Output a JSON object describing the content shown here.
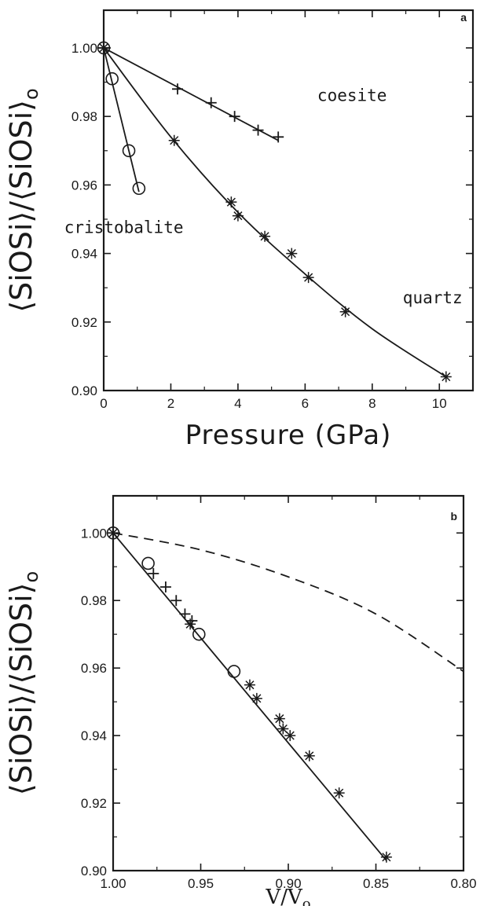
{
  "chart_data": [
    {
      "type": "line",
      "panel_label": "a",
      "xlabel": "Pressure (GPa)",
      "ylabel": "⟨SiOSi⟩/⟨SiOSi⟩",
      "ylabel_sub": "o",
      "xlim": [
        0,
        11
      ],
      "ylim": [
        0.9,
        1.011
      ],
      "x_ticks": [
        0,
        2,
        4,
        6,
        8,
        10
      ],
      "x_tick_labels": [
        "0",
        "2",
        "4",
        "6",
        "8",
        "10"
      ],
      "y_ticks": [
        0.9,
        0.92,
        0.94,
        0.96,
        0.98,
        1.0
      ],
      "y_tick_labels": [
        "0.90",
        "0.92",
        "0.94",
        "0.96",
        "0.98",
        "1.00"
      ],
      "series": [
        {
          "name": "coesite",
          "marker": "plus",
          "x": [
            0,
            2.2,
            3.2,
            3.9,
            4.6,
            5.2
          ],
          "y": [
            1.0,
            0.988,
            0.984,
            0.98,
            0.976,
            0.974
          ],
          "fit": [
            [
              0,
              1.0
            ],
            [
              5.2,
              0.973
            ]
          ]
        },
        {
          "name": "quartz",
          "marker": "star",
          "x": [
            0,
            2.1,
            3.8,
            4.0,
            4.8,
            5.6,
            6.1,
            7.2,
            10.2
          ],
          "y": [
            1.0,
            0.973,
            0.955,
            0.951,
            0.945,
            0.94,
            0.933,
            0.923,
            0.904
          ],
          "fit": [
            [
              0,
              1.0
            ],
            [
              2,
              0.974
            ],
            [
              4,
              0.952
            ],
            [
              6,
              0.934
            ],
            [
              8,
              0.918
            ],
            [
              10.2,
              0.904
            ]
          ]
        },
        {
          "name": "cristobalite",
          "marker": "circle",
          "x": [
            0,
            0.25,
            0.75,
            1.05
          ],
          "y": [
            1.0,
            0.991,
            0.97,
            0.959
          ],
          "fit": [
            [
              0,
              1.0
            ],
            [
              1.05,
              0.958
            ]
          ]
        }
      ],
      "annotations": [
        {
          "text": "coesite",
          "x": 7.4,
          "y": 0.9845
        },
        {
          "text": "cristobalite",
          "x": 0.6,
          "y": 0.946
        },
        {
          "text": "quartz",
          "x": 9.8,
          "y": 0.9255
        }
      ]
    },
    {
      "type": "line",
      "panel_label": "b",
      "xlabel": "V/V",
      "xlabel_sub": "o",
      "ylabel": "⟨SiOSi⟩/⟨SiOSi⟩",
      "ylabel_sub": "o",
      "xlim": [
        1.0,
        0.8
      ],
      "ylim": [
        0.9,
        1.011
      ],
      "x_ticks": [
        1.0,
        0.95,
        0.9,
        0.85,
        0.8
      ],
      "x_tick_labels": [
        "1.00",
        "0.95",
        "0.90",
        "0.85",
        "0.80"
      ],
      "y_ticks": [
        0.9,
        0.92,
        0.94,
        0.96,
        0.98,
        1.0
      ],
      "y_tick_labels": [
        "0.90",
        "0.92",
        "0.94",
        "0.96",
        "0.98",
        "1.00"
      ],
      "series": [
        {
          "marker": "circle",
          "x": [
            1.0,
            0.98,
            0.951,
            0.931
          ],
          "y": [
            1.0,
            0.991,
            0.97,
            0.959
          ]
        },
        {
          "marker": "plus",
          "x": [
            1.0,
            0.977,
            0.97,
            0.964,
            0.959,
            0.955
          ],
          "y": [
            1.0,
            0.988,
            0.984,
            0.98,
            0.976,
            0.974
          ]
        },
        {
          "marker": "star",
          "x": [
            1.0,
            0.956,
            0.922,
            0.918,
            0.905,
            0.903,
            0.899,
            0.888,
            0.871,
            0.844
          ],
          "y": [
            1.0,
            0.973,
            0.955,
            0.951,
            0.945,
            0.942,
            0.94,
            0.934,
            0.923,
            0.904
          ]
        }
      ],
      "solid_fit": [
        [
          1.0,
          1.0
        ],
        [
          0.844,
          0.903
        ]
      ],
      "dashed_curve": [
        [
          1.0,
          1.0
        ],
        [
          0.95,
          0.995
        ],
        [
          0.9,
          0.987
        ],
        [
          0.85,
          0.976
        ],
        [
          0.8,
          0.959
        ]
      ]
    }
  ]
}
